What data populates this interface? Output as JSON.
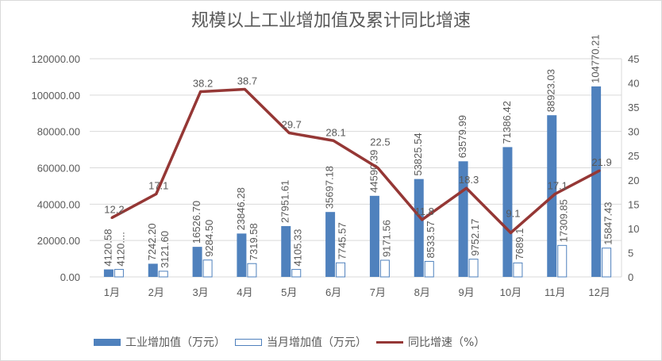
{
  "chart_data": {
    "type": "bar",
    "title": "规模以上工业增加值及累计同比增速",
    "categories": [
      "1月",
      "2月",
      "3月",
      "4月",
      "5月",
      "6月",
      "7月",
      "8月",
      "9月",
      "10月",
      "11月",
      "12月"
    ],
    "series": [
      {
        "name": "工业增加值（万元）",
        "type": "bar",
        "axis": "left",
        "color": "#4f81bd",
        "values": [
          4120.58,
          7242.2,
          16526.7,
          23846.28,
          27951.61,
          35697.18,
          44590.39,
          53825.54,
          63579.99,
          71386.42,
          88923.03,
          104770.21
        ],
        "labels": [
          "4120.58",
          "7242.20",
          "16526.70",
          "23846.28",
          "27951.61",
          "35697.18",
          "44590.39",
          "53825.54",
          "63579.99",
          "71386.42",
          "88923.03",
          "104770.21"
        ]
      },
      {
        "name": "当月增加值（万元）",
        "type": "bar",
        "axis": "left",
        "color": "#4f81bd",
        "fill": "#ffffff",
        "values": [
          4120.58,
          3121.6,
          9284.5,
          7319.58,
          4105.33,
          7745.57,
          9171.56,
          8533.57,
          9752.17,
          7689.1,
          17309.85,
          15847.43
        ],
        "labels": [
          "4120....",
          "3121.60",
          "9284.50",
          "7319.58",
          "4105.33",
          "7745.57",
          "9171.56",
          "8533.57",
          "9752.17",
          "7689.1",
          "17309.85",
          "15847.43"
        ]
      },
      {
        "name": "同比增速（%）",
        "type": "line",
        "axis": "right",
        "color": "#953735",
        "values": [
          12.2,
          17.1,
          38.2,
          38.7,
          29.7,
          28.1,
          22.5,
          11.8,
          18.3,
          9.1,
          17.1,
          21.9
        ],
        "labels": [
          "12.2",
          "17.1",
          "38.2",
          "38.7",
          "29.7",
          "28.1",
          "22.5",
          "11.8",
          "18.3",
          "9.1",
          "17.1",
          "21.9"
        ]
      }
    ],
    "y_left": {
      "ylim": [
        0,
        120000
      ],
      "ticks": [
        "0.00",
        "20000.00",
        "40000.00",
        "60000.00",
        "80000.00",
        "100000.00",
        "120000.00"
      ]
    },
    "y_right": {
      "ylim": [
        0,
        45
      ],
      "ticks": [
        "0",
        "5",
        "10",
        "15",
        "20",
        "25",
        "30",
        "35",
        "40",
        "45"
      ]
    },
    "grid": true,
    "legend": "bottom"
  }
}
